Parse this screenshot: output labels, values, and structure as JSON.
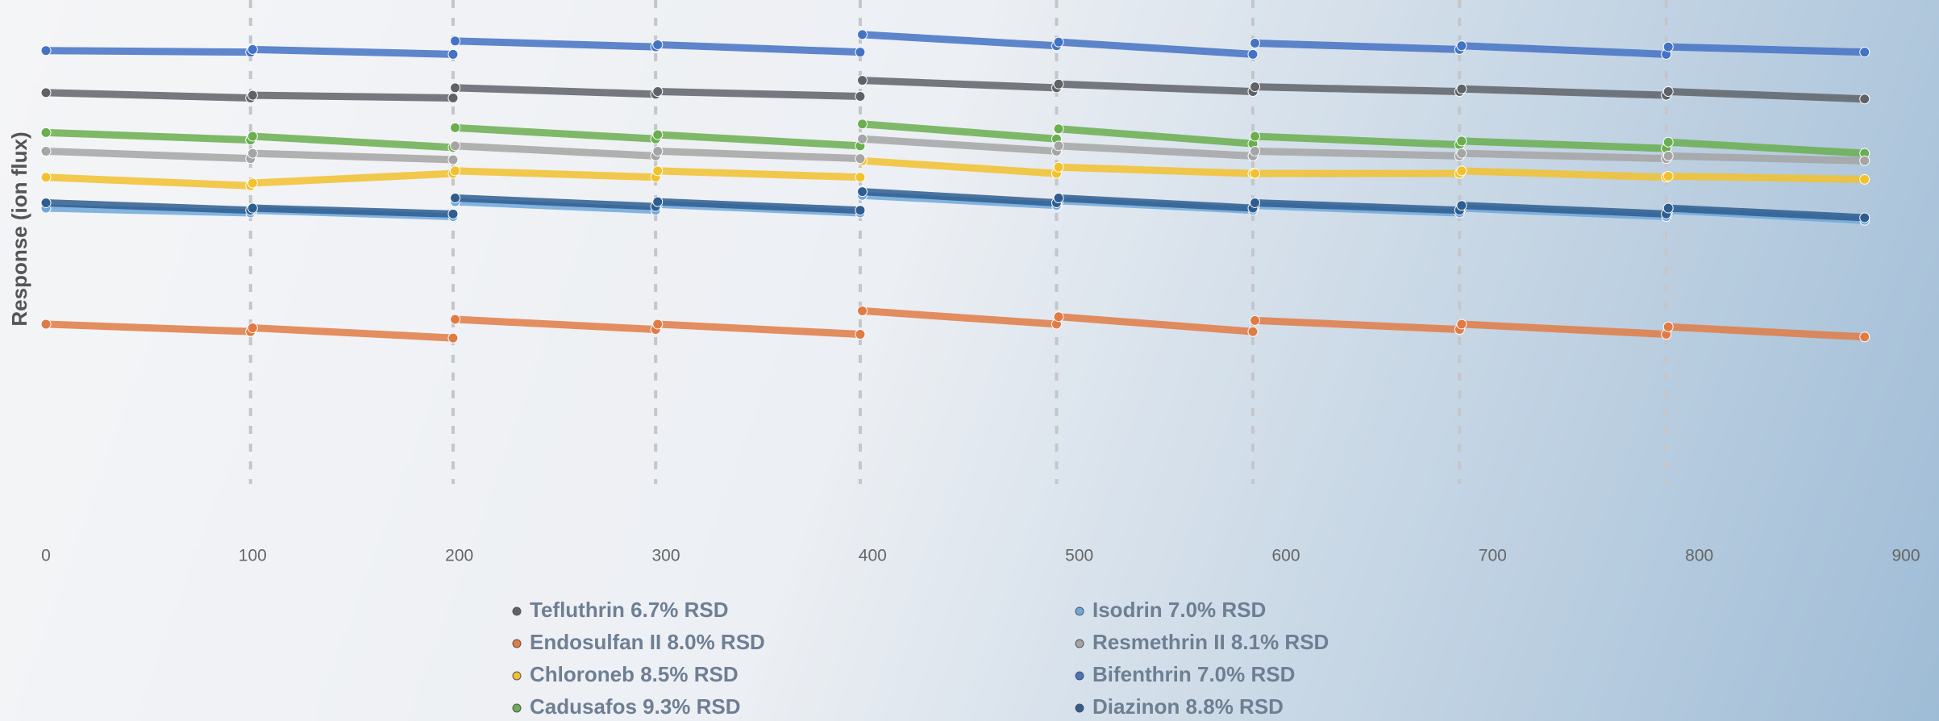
{
  "chart_data": {
    "type": "line",
    "y_label": "Response (ion flux)",
    "x": [
      0,
      99,
      100,
      197,
      198,
      295,
      296,
      394,
      395,
      489,
      490,
      584,
      585,
      684,
      685,
      784,
      785,
      880
    ],
    "xlim": [
      0,
      900
    ],
    "xticks": [
      0,
      100,
      200,
      300,
      400,
      500,
      600,
      700,
      800,
      900
    ],
    "ylim": [
      0,
      100
    ],
    "series": [
      {
        "name": "Tefluthrin 6.7% RSD",
        "color": "#5f6368",
        "values": [
          82.6,
          81.6,
          82.1,
          81.6,
          83.5,
          82.3,
          82.8,
          81.9,
          84.9,
          83.5,
          84.2,
          82.8,
          83.7,
          82.8,
          83.3,
          82.1,
          82.8,
          81.4
        ]
      },
      {
        "name": "Endosulfan II 8.0% RSD",
        "color": "#e07b45",
        "values": [
          39.1,
          37.7,
          38.4,
          36.5,
          40.0,
          38.1,
          39.1,
          37.2,
          41.6,
          39.1,
          40.5,
          37.7,
          39.8,
          38.1,
          39.1,
          37.2,
          38.6,
          36.7
        ]
      },
      {
        "name": "Chloroneb 8.5% RSD",
        "color": "#f2c12e",
        "values": [
          66.7,
          65.1,
          65.6,
          67.4,
          67.9,
          66.7,
          67.9,
          66.7,
          69.8,
          67.4,
          68.6,
          67.4,
          67.4,
          67.4,
          67.9,
          66.7,
          66.9,
          66.3
        ]
      },
      {
        "name": "Cadusafos 9.3% RSD",
        "color": "#6aae4f",
        "values": [
          75.1,
          73.7,
          74.4,
          72.3,
          76.0,
          73.9,
          74.7,
          72.6,
          76.7,
          73.9,
          75.8,
          73.0,
          74.4,
          72.8,
          73.5,
          72.1,
          73.3,
          71.2
        ]
      },
      {
        "name": "Isodrin 7.0% RSD",
        "color": "#6fa8dc",
        "values": [
          60.9,
          60.0,
          60.5,
          59.3,
          62.1,
          60.5,
          61.6,
          60.0,
          63.3,
          61.4,
          62.3,
          60.5,
          61.4,
          60.0,
          60.9,
          59.3,
          60.5,
          58.6
        ]
      },
      {
        "name": "Resmethrin II 8.1% RSD",
        "color": "#a5a5a5",
        "values": [
          71.6,
          70.2,
          71.2,
          70.0,
          72.6,
          70.7,
          71.6,
          70.2,
          73.9,
          71.6,
          72.6,
          70.7,
          71.6,
          70.7,
          71.2,
          70.2,
          70.7,
          69.8
        ]
      },
      {
        "name": "Bifenthrin 7.0% RSD",
        "color": "#4472c4",
        "values": [
          90.5,
          90.2,
          90.7,
          89.8,
          92.3,
          91.2,
          91.6,
          90.2,
          93.5,
          91.4,
          92.1,
          89.8,
          91.9,
          90.7,
          91.4,
          89.8,
          91.2,
          90.2
        ]
      },
      {
        "name": "Diazinon 8.8% RSD",
        "color": "#2e5d8f",
        "values": [
          61.9,
          60.5,
          60.9,
          59.8,
          62.8,
          61.2,
          62.1,
          60.5,
          64.0,
          61.9,
          62.8,
          60.9,
          61.9,
          60.5,
          61.4,
          59.8,
          60.9,
          59.1
        ]
      }
    ]
  }
}
